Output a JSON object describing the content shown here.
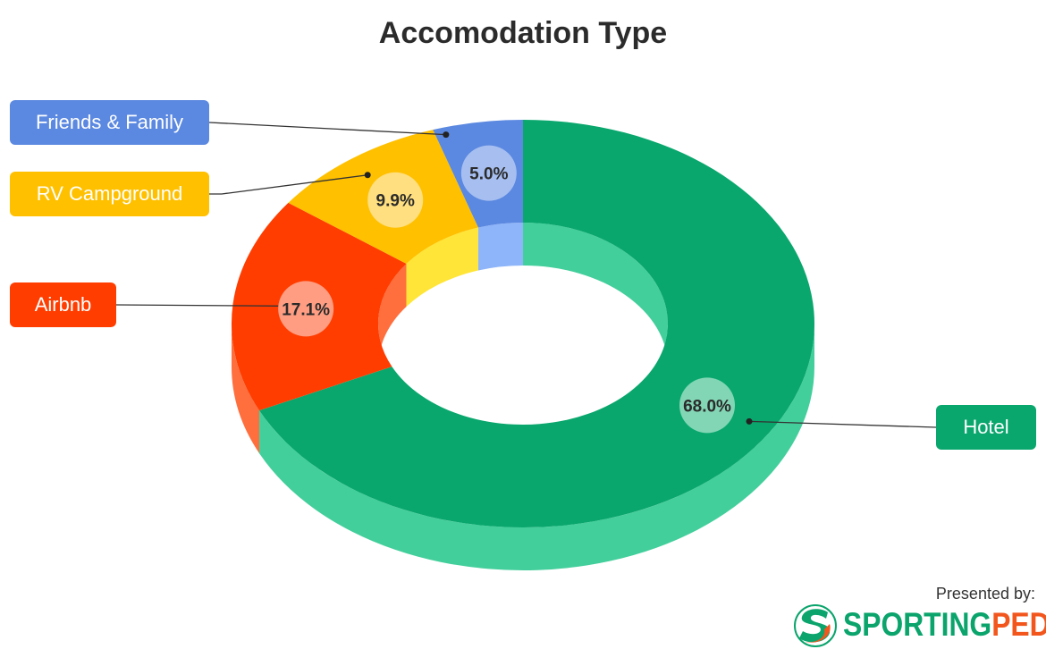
{
  "title": "Accomodation Type",
  "chart_data": {
    "type": "pie",
    "style": "3d-donut",
    "title": "Accomodation Type",
    "slices": [
      {
        "label": "Hotel",
        "value": 68.0,
        "display": "68.0%",
        "color": "#09a76d",
        "side": "#43cf9c",
        "bubble": "#82d6b6"
      },
      {
        "label": "Airbnb",
        "value": 17.1,
        "display": "17.1%",
        "color": "#ff3d00",
        "side": "#ff6f3e",
        "bubble": "#ff9d82"
      },
      {
        "label": "RV Campground",
        "value": 9.9,
        "display": "9.9%",
        "color": "#ffc000",
        "side": "#ffe537",
        "bubble": "#ffdf7f"
      },
      {
        "label": "Friends & Family",
        "value": 5.0,
        "display": "5.0%",
        "color": "#5b88e0",
        "side": "#8eb5f9",
        "bubble": "#a6bff0"
      }
    ],
    "legend_placement": "callout labels"
  },
  "footer": {
    "presented_by": "Presented by:",
    "brand_part1": "SPORTING",
    "brand_part2": "PEDIA",
    "brand_color1": "#0aa46c",
    "brand_color2": "#f2561d"
  }
}
